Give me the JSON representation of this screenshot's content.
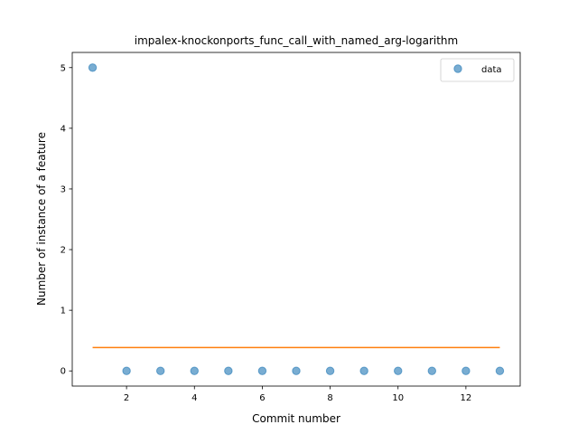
{
  "chart_data": {
    "type": "scatter",
    "title": "impalex-knockonports_func_call_with_named_arg-logarithm",
    "xlabel": "Commit number",
    "ylabel": "Number of instance of a feature",
    "xlim": [
      0.4,
      13.6
    ],
    "ylim": [
      -0.25,
      5.25
    ],
    "xticks": [
      2,
      4,
      6,
      8,
      10,
      12
    ],
    "yticks": [
      0,
      1,
      2,
      3,
      4,
      5
    ],
    "grid": false,
    "legend_position": "top-right",
    "series": [
      {
        "name": "data",
        "kind": "scatter",
        "color": "#1f77b4",
        "x": [
          1,
          2,
          3,
          4,
          5,
          6,
          7,
          8,
          9,
          10,
          11,
          12,
          13
        ],
        "y": [
          5,
          0,
          0,
          0,
          0,
          0,
          0,
          0,
          0,
          0,
          0,
          0,
          0
        ]
      },
      {
        "kind": "line",
        "color": "#ff7f0e",
        "x": [
          1,
          13
        ],
        "y": [
          0.385,
          0.385
        ]
      }
    ]
  }
}
